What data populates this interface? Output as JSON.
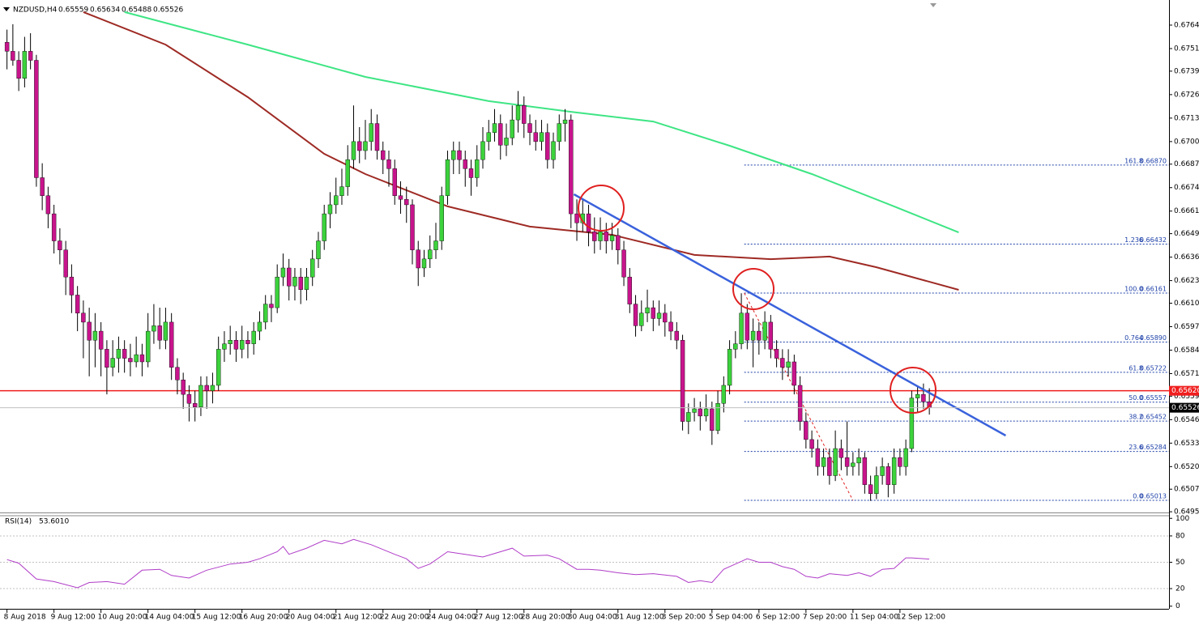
{
  "chart_data": {
    "type": "candlestick",
    "title": "NZDUSD,H4",
    "bull_color": "#3cd23c",
    "bear_color": "#c8148c",
    "wick_color": "#000000",
    "xlim": [
      -0.5,
      197.8
    ],
    "ylim": [
      0.64946,
      0.67784
    ],
    "xticks": [
      {
        "value": 0,
        "label": "8 Aug 2018"
      },
      {
        "value": 8,
        "label": "9 Aug 12:00"
      },
      {
        "value": 16,
        "label": "10 Aug 20:00"
      },
      {
        "value": 24,
        "label": "14 Aug 04:00"
      },
      {
        "value": 32,
        "label": "15 Aug 12:00"
      },
      {
        "value": 40,
        "label": "16 Aug 20:00"
      },
      {
        "value": 48,
        "label": "20 Aug 04:00"
      },
      {
        "value": 56,
        "label": "21 Aug 12:00"
      },
      {
        "value": 64,
        "label": "22 Aug 20:00"
      },
      {
        "value": 72,
        "label": "24 Aug 04:00"
      },
      {
        "value": 80,
        "label": "27 Aug 12:00"
      },
      {
        "value": 88,
        "label": "28 Aug 20:00"
      },
      {
        "value": 96,
        "label": "30 Aug 04:00"
      },
      {
        "value": 104,
        "label": "31 Aug 12:00"
      },
      {
        "value": 112,
        "label": "3 Sep 20:00"
      },
      {
        "value": 120,
        "label": "5 Sep 04:00"
      },
      {
        "value": 128,
        "label": "6 Sep 12:00"
      },
      {
        "value": 136,
        "label": "7 Sep 20:00"
      },
      {
        "value": 144,
        "label": "11 Sep 04:00"
      },
      {
        "value": 152,
        "label": "12 Sep 12:00"
      }
    ],
    "yticks": [
      0.67645,
      0.67515,
      {
        "value": 0.6739,
        "label": "0.67390"
      },
      {
        "value": 0.6726,
        "label": "0.67260"
      },
      {
        "value": 0.6713,
        "label": "0.67130"
      },
      {
        "value": 0.67,
        "label": "0.67000"
      },
      0.66875,
      0.66745,
      0.66615,
      {
        "value": 0.6649,
        "label": "0.66490"
      },
      {
        "value": 0.6636,
        "label": "0.66360"
      },
      {
        "value": 0.6623,
        "label": "0.66230"
      },
      0.66105,
      0.65975,
      0.65845,
      0.65715,
      {
        "value": 0.6559,
        "label": "0.65590"
      },
      {
        "value": 0.6546,
        "label": "0.65460"
      },
      {
        "value": 0.6533,
        "label": "0.65330"
      },
      {
        "value": 0.652,
        "label": "0.65200"
      },
      0.65075,
      {
        "value": 0.6495,
        "label": "0.64950"
      }
    ],
    "candles": [
      [
        0.6755,
        0.6762,
        0.674,
        0.675
      ],
      [
        0.675,
        0.6765,
        0.6742,
        0.6745
      ],
      [
        0.6745,
        0.675,
        0.6728,
        0.6735
      ],
      [
        0.6735,
        0.6758,
        0.673,
        0.675
      ],
      [
        0.675,
        0.676,
        0.674,
        0.6745
      ],
      [
        0.6745,
        0.6748,
        0.6675,
        0.668
      ],
      [
        0.668,
        0.6688,
        0.6662,
        0.667
      ],
      [
        0.667,
        0.6675,
        0.6652,
        0.666
      ],
      [
        0.666,
        0.6665,
        0.6638,
        0.6645
      ],
      [
        0.6645,
        0.6652,
        0.6632,
        0.664
      ],
      [
        0.664,
        0.6645,
        0.6615,
        0.6625
      ],
      [
        0.6625,
        0.6632,
        0.6605,
        0.6615
      ],
      [
        0.6615,
        0.662,
        0.6595,
        0.6605
      ],
      [
        0.6605,
        0.6612,
        0.658,
        0.66
      ],
      [
        0.66,
        0.6608,
        0.657,
        0.659
      ],
      [
        0.659,
        0.6605,
        0.6575,
        0.6595
      ],
      [
        0.6595,
        0.66,
        0.657,
        0.6585
      ],
      [
        0.6585,
        0.659,
        0.656,
        0.6575
      ],
      [
        0.6575,
        0.659,
        0.657,
        0.658
      ],
      [
        0.658,
        0.6592,
        0.6572,
        0.6585
      ],
      [
        0.6585,
        0.659,
        0.6572,
        0.658
      ],
      [
        0.658,
        0.6588,
        0.657,
        0.6578
      ],
      [
        0.6578,
        0.6592,
        0.6575,
        0.6582
      ],
      [
        0.6582,
        0.6588,
        0.657,
        0.6578
      ],
      [
        0.6578,
        0.6605,
        0.6575,
        0.6595
      ],
      [
        0.6595,
        0.661,
        0.6588,
        0.6598
      ],
      [
        0.6598,
        0.6608,
        0.6585,
        0.659
      ],
      [
        0.659,
        0.6608,
        0.6585,
        0.66
      ],
      [
        0.66,
        0.6605,
        0.6568,
        0.6575
      ],
      [
        0.6575,
        0.658,
        0.656,
        0.6568
      ],
      [
        0.6568,
        0.6572,
        0.6552,
        0.656
      ],
      [
        0.656,
        0.6565,
        0.6545,
        0.6555
      ],
      [
        0.6555,
        0.6562,
        0.6545,
        0.6553
      ],
      [
        0.6553,
        0.657,
        0.6548,
        0.6565
      ],
      [
        0.6565,
        0.657,
        0.6552,
        0.6562
      ],
      [
        0.6562,
        0.6572,
        0.6555,
        0.6565
      ],
      [
        0.6565,
        0.6592,
        0.6562,
        0.6585
      ],
      [
        0.6585,
        0.6595,
        0.6578,
        0.6588
      ],
      [
        0.6588,
        0.6598,
        0.6582,
        0.659
      ],
      [
        0.659,
        0.6595,
        0.6578,
        0.6585
      ],
      [
        0.6585,
        0.6598,
        0.658,
        0.659
      ],
      [
        0.659,
        0.6595,
        0.658,
        0.6588
      ],
      [
        0.6588,
        0.66,
        0.6582,
        0.6595
      ],
      [
        0.6595,
        0.6606,
        0.659,
        0.66
      ],
      [
        0.66,
        0.6615,
        0.6596,
        0.661
      ],
      [
        0.661,
        0.6615,
        0.66,
        0.6608
      ],
      [
        0.6608,
        0.6632,
        0.6605,
        0.6625
      ],
      [
        0.6625,
        0.6638,
        0.662,
        0.663
      ],
      [
        0.663,
        0.6635,
        0.6612,
        0.662
      ],
      [
        0.662,
        0.663,
        0.6612,
        0.6625
      ],
      [
        0.6625,
        0.663,
        0.661,
        0.6618
      ],
      [
        0.6618,
        0.663,
        0.6612,
        0.6625
      ],
      [
        0.6625,
        0.664,
        0.662,
        0.6635
      ],
      [
        0.6635,
        0.665,
        0.663,
        0.6645
      ],
      [
        0.6645,
        0.6665,
        0.664,
        0.666
      ],
      [
        0.666,
        0.6672,
        0.6652,
        0.6665
      ],
      [
        0.6665,
        0.668,
        0.666,
        0.667
      ],
      [
        0.667,
        0.6685,
        0.6665,
        0.6675
      ],
      [
        0.6675,
        0.6698,
        0.667,
        0.669
      ],
      [
        0.669,
        0.672,
        0.6685,
        0.67
      ],
      [
        0.67,
        0.6708,
        0.6688,
        0.6695
      ],
      [
        0.6695,
        0.6712,
        0.669,
        0.67
      ],
      [
        0.67,
        0.6718,
        0.6695,
        0.671
      ],
      [
        0.671,
        0.6715,
        0.669,
        0.6695
      ],
      [
        0.6695,
        0.67,
        0.6682,
        0.669
      ],
      [
        0.669,
        0.6695,
        0.6675,
        0.6685
      ],
      [
        0.6685,
        0.669,
        0.6665,
        0.667
      ],
      [
        0.667,
        0.6678,
        0.666,
        0.6668
      ],
      [
        0.6668,
        0.6675,
        0.6655,
        0.6665
      ],
      [
        0.6665,
        0.6668,
        0.6632,
        0.664
      ],
      [
        0.664,
        0.6645,
        0.662,
        0.663
      ],
      [
        0.663,
        0.664,
        0.6625,
        0.6635
      ],
      [
        0.6635,
        0.6648,
        0.663,
        0.664
      ],
      [
        0.664,
        0.6655,
        0.6635,
        0.6645
      ],
      [
        0.6645,
        0.6675,
        0.664,
        0.667
      ],
      [
        0.667,
        0.6695,
        0.6665,
        0.669
      ],
      [
        0.669,
        0.67,
        0.6682,
        0.6695
      ],
      [
        0.6695,
        0.67,
        0.6682,
        0.669
      ],
      [
        0.669,
        0.6695,
        0.6675,
        0.6685
      ],
      [
        0.6685,
        0.669,
        0.667,
        0.668
      ],
      [
        0.668,
        0.6698,
        0.6675,
        0.669
      ],
      [
        0.669,
        0.6708,
        0.6685,
        0.67
      ],
      [
        0.67,
        0.6712,
        0.6695,
        0.6705
      ],
      [
        0.6705,
        0.6718,
        0.67,
        0.671
      ],
      [
        0.671,
        0.6715,
        0.669,
        0.6698
      ],
      [
        0.6698,
        0.671,
        0.6692,
        0.6702
      ],
      [
        0.6702,
        0.672,
        0.6698,
        0.6712
      ],
      [
        0.6712,
        0.6728,
        0.6705,
        0.672
      ],
      [
        0.672,
        0.6725,
        0.6702,
        0.671
      ],
      [
        0.671,
        0.6715,
        0.6698,
        0.6705
      ],
      [
        0.6705,
        0.6712,
        0.6695,
        0.67
      ],
      [
        0.67,
        0.6712,
        0.6695,
        0.6705
      ],
      [
        0.6705,
        0.671,
        0.6685,
        0.669
      ],
      [
        0.669,
        0.6705,
        0.6685,
        0.67
      ],
      [
        0.67,
        0.6715,
        0.6695,
        0.671
      ],
      [
        0.671,
        0.6718,
        0.67,
        0.6712
      ],
      [
        0.6712,
        0.6715,
        0.6652,
        0.666
      ],
      [
        0.666,
        0.6668,
        0.6645,
        0.6655
      ],
      [
        0.6655,
        0.6668,
        0.665,
        0.666
      ],
      [
        0.666,
        0.6665,
        0.6642,
        0.665
      ],
      [
        0.665,
        0.6658,
        0.6638,
        0.6645
      ],
      [
        0.6645,
        0.6658,
        0.664,
        0.665
      ],
      [
        0.665,
        0.6655,
        0.6638,
        0.6645
      ],
      [
        0.6645,
        0.6655,
        0.664,
        0.6648
      ],
      [
        0.6648,
        0.6652,
        0.6632,
        0.664
      ],
      [
        0.664,
        0.6645,
        0.662,
        0.6625
      ],
      [
        0.6625,
        0.663,
        0.6605,
        0.661
      ],
      [
        0.661,
        0.6615,
        0.6592,
        0.6598
      ],
      [
        0.6598,
        0.6612,
        0.6595,
        0.6605
      ],
      [
        0.6605,
        0.6618,
        0.66,
        0.6608
      ],
      [
        0.6608,
        0.6612,
        0.6595,
        0.6602
      ],
      [
        0.6602,
        0.6612,
        0.6598,
        0.6605
      ],
      [
        0.6605,
        0.661,
        0.6592,
        0.66
      ],
      [
        0.66,
        0.6606,
        0.659,
        0.6595
      ],
      [
        0.6595,
        0.66,
        0.6585,
        0.659
      ],
      [
        0.659,
        0.6593,
        0.654,
        0.6545
      ],
      [
        0.6545,
        0.6555,
        0.6538,
        0.655
      ],
      [
        0.655,
        0.6558,
        0.6545,
        0.6552
      ],
      [
        0.6552,
        0.6556,
        0.654,
        0.6548
      ],
      [
        0.6548,
        0.656,
        0.6545,
        0.6552
      ],
      [
        0.6552,
        0.6556,
        0.6532,
        0.654
      ],
      [
        0.654,
        0.6562,
        0.6538,
        0.6555
      ],
      [
        0.6555,
        0.657,
        0.655,
        0.6565
      ],
      [
        0.6565,
        0.659,
        0.656,
        0.6585
      ],
      [
        0.6585,
        0.6595,
        0.658,
        0.6588
      ],
      [
        0.6588,
        0.6616,
        0.6585,
        0.6605
      ],
      [
        0.6605,
        0.661,
        0.6585,
        0.659
      ],
      [
        0.659,
        0.6602,
        0.6575,
        0.6595
      ],
      [
        0.6595,
        0.66,
        0.6582,
        0.659
      ],
      [
        0.659,
        0.6606,
        0.6585,
        0.66
      ],
      [
        0.66,
        0.6604,
        0.658,
        0.6585
      ],
      [
        0.6585,
        0.659,
        0.6575,
        0.658
      ],
      [
        0.658,
        0.6585,
        0.6568,
        0.6575
      ],
      [
        0.6575,
        0.6585,
        0.657,
        0.6578
      ],
      [
        0.6578,
        0.6582,
        0.656,
        0.6565
      ],
      [
        0.6565,
        0.657,
        0.654,
        0.6545
      ],
      [
        0.6545,
        0.655,
        0.653,
        0.6535
      ],
      [
        0.6535,
        0.654,
        0.6525,
        0.653
      ],
      [
        0.653,
        0.6535,
        0.6515,
        0.652
      ],
      [
        0.652,
        0.653,
        0.6515,
        0.6525
      ],
      [
        0.6525,
        0.653,
        0.651,
        0.6515
      ],
      [
        0.6515,
        0.654,
        0.6512,
        0.653
      ],
      [
        0.653,
        0.6535,
        0.6518,
        0.6525
      ],
      [
        0.6525,
        0.6545,
        0.6515,
        0.652
      ],
      [
        0.652,
        0.6528,
        0.6515,
        0.6522
      ],
      [
        0.6522,
        0.653,
        0.6515,
        0.6525
      ],
      [
        0.6525,
        0.6528,
        0.6505,
        0.651
      ],
      [
        0.651,
        0.6515,
        0.6501,
        0.6505
      ],
      [
        0.6505,
        0.652,
        0.6502,
        0.6515
      ],
      [
        0.6515,
        0.6525,
        0.651,
        0.652
      ],
      [
        0.652,
        0.6522,
        0.6503,
        0.651
      ],
      [
        0.651,
        0.653,
        0.6505,
        0.6525
      ],
      [
        0.6525,
        0.653,
        0.6515,
        0.652
      ],
      [
        0.652,
        0.6535,
        0.6515,
        0.653
      ],
      [
        0.653,
        0.6562,
        0.6528,
        0.6558
      ],
      [
        0.6558,
        0.6565,
        0.655,
        0.656
      ],
      [
        0.656,
        0.6566,
        0.6552,
        0.65559
      ],
      [
        0.65559,
        0.65634,
        0.65488,
        0.65526
      ]
    ],
    "lines": [
      {
        "color": "#3ee584",
        "x": [
          20,
          41,
          61,
          82,
          96,
          110,
          123,
          137,
          151,
          162
        ],
        "values": [
          0.67717,
          0.67537,
          0.67358,
          0.67224,
          0.67165,
          0.67111,
          0.66977,
          0.6682,
          0.66641,
          0.66497
        ]
      },
      {
        "color": "#9e2a24",
        "x": [
          13,
          27,
          41,
          54,
          61,
          75,
          89,
          103,
          117,
          130,
          140,
          148,
          162
        ],
        "values": [
          0.67717,
          0.67537,
          0.67246,
          0.66932,
          0.6682,
          0.66641,
          0.66529,
          0.66484,
          0.66372,
          0.66349,
          0.66363,
          0.66304,
          0.66179
        ]
      }
    ],
    "trendline": {
      "color": "#3a62dc",
      "x": [
        96.5,
        170
      ],
      "values": [
        0.66708,
        0.65372
      ]
    },
    "hline": {
      "color": "#f01e1e",
      "value": 0.6562,
      "label": "0.65620"
    },
    "fib": {
      "color": "#1c3fa8",
      "start_x": 125.5,
      "anchors_x": [
        125.5,
        144
      ],
      "anchor_values": [
        0.66161,
        0.65013
      ],
      "levels": [
        {
          "ratio": "161.8",
          "price": {
            "value": 0.6687,
            "label": "0.66870"
          }
        },
        {
          "ratio": "1.236",
          "price": 0.66432
        },
        {
          "ratio": "100.0",
          "price": 0.66161
        },
        {
          "ratio": "0.764",
          "price": {
            "value": 0.6589,
            "label": "0.65890"
          }
        },
        {
          "ratio": "61.8",
          "price": 0.65722
        },
        {
          "ratio": "50.0",
          "price": 0.65557
        },
        {
          "ratio": "38.2",
          "price": 0.65452
        },
        {
          "ratio": "23.6",
          "price": 0.65284
        },
        {
          "ratio": "0.0",
          "price": 0.65013
        }
      ]
    },
    "rsi": {
      "name": "RSI(14)",
      "last": {
        "value": 53.601,
        "label": "53.6010"
      },
      "color": "#b03cc8",
      "ylim": [
        -3,
        103
      ],
      "yticks": [
        100,
        80,
        50,
        20,
        0
      ],
      "levels": [
        80,
        50,
        20
      ],
      "x": [
        0,
        2,
        5,
        8,
        12,
        14,
        17,
        20,
        23,
        26,
        28,
        31,
        34,
        38,
        41,
        43,
        46,
        47,
        48,
        51,
        54,
        57,
        59,
        62,
        66,
        68,
        70,
        72,
        75,
        78,
        81,
        84,
        86,
        88,
        92,
        94,
        97,
        99,
        101,
        104,
        107,
        110,
        114,
        116,
        118,
        120,
        122,
        124,
        126,
        128,
        130,
        132,
        134,
        136,
        138,
        140,
        143,
        145,
        147,
        149,
        151,
        153,
        154,
        157
      ],
      "values": [
        53,
        49,
        31,
        28,
        21,
        27,
        28,
        25,
        41,
        42,
        35,
        32,
        41,
        48,
        50,
        54,
        62,
        68,
        59,
        66,
        75,
        71,
        76,
        70,
        59,
        54,
        43,
        48,
        62,
        59,
        56,
        62,
        66,
        57,
        58,
        54,
        42,
        42,
        41,
        38,
        36,
        37,
        34,
        27,
        29,
        27,
        42,
        48,
        54,
        50,
        50,
        45,
        42,
        34,
        32,
        37,
        35,
        38,
        34,
        42,
        43,
        55,
        55,
        53.601
      ]
    }
  }
}
